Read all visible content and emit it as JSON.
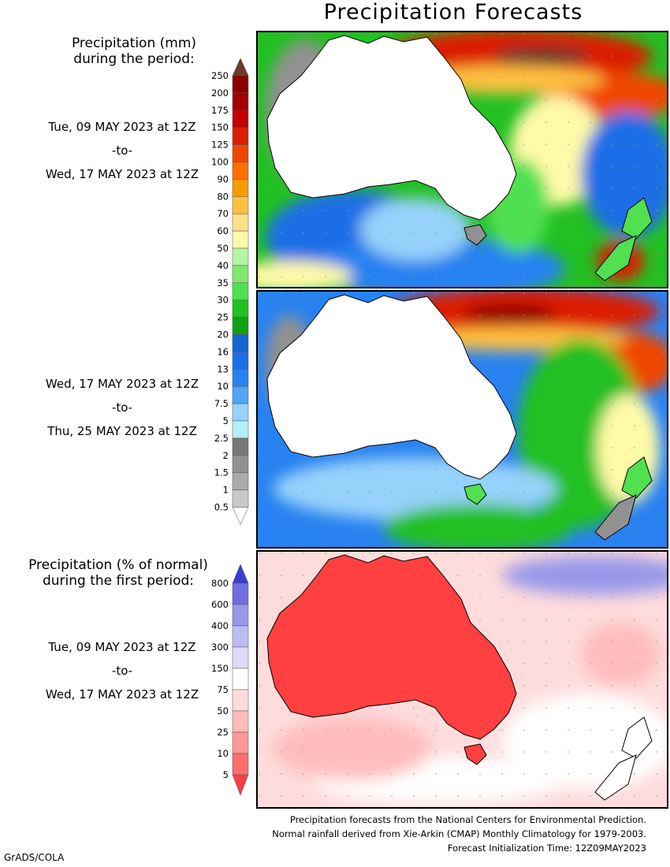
{
  "title": "Precipitation Forecasts",
  "section1": {
    "heading": [
      "Precipitation (mm)",
      "during the period:"
    ],
    "period1": {
      "start": "Tue, 09 MAY 2023 at 12Z",
      "sep": "-to-",
      "end": "Wed, 17 MAY 2023 at 12Z"
    },
    "period2": {
      "start": "Wed, 17 MAY 2023 at 12Z",
      "sep": "-to-",
      "end": "Thu, 25 MAY 2023 at 12Z"
    }
  },
  "section2": {
    "heading": [
      "Precipitation (% of normal)",
      "during the first period:"
    ],
    "period": {
      "start": "Tue, 09 MAY 2023 at 12Z",
      "sep": "-to-",
      "end": "Wed, 17 MAY 2023 at 12Z"
    }
  },
  "mm_scale": {
    "labels": [
      "250",
      "200",
      "175",
      "150",
      "125",
      "100",
      "90",
      "80",
      "70",
      "60",
      "50",
      "40",
      "35",
      "30",
      "25",
      "20",
      "16",
      "13",
      "10",
      "7.5",
      "5",
      "2.5",
      "2",
      "1.5",
      "1",
      "0.5"
    ],
    "colors": [
      "#6a3a2e",
      "#8b0000",
      "#a50000",
      "#c40000",
      "#dc1e00",
      "#f04600",
      "#ff6e00",
      "#f59c00",
      "#ffc040",
      "#ffdf86",
      "#fffaa8",
      "#b4f5a0",
      "#80e870",
      "#50e050",
      "#22c022",
      "#12a012",
      "#1464d2",
      "#1e6ee6",
      "#2882f0",
      "#50a5f5",
      "#96d2fa",
      "#b4f0fa",
      "#777777",
      "#919191",
      "#aaaaaa",
      "#c8c8c8"
    ]
  },
  "pct_scale": {
    "labels": [
      "800",
      "600",
      "400",
      "300",
      "150",
      "75",
      "50",
      "25",
      "10",
      "5"
    ],
    "colors": [
      "#3c3cd0",
      "#6e6ee0",
      "#9898ea",
      "#bcbcf2",
      "#dcdcfa",
      "#ffffff",
      "#ffdcdc",
      "#ffbcbc",
      "#ff9898",
      "#ff6e6e",
      "#ff4040"
    ]
  },
  "footer": {
    "line1": "Precipitation forecasts from the National Centers for Environmental Prediction.",
    "line2": "Normal rainfall derived from Xie-Arkin (CMAP) Monthly Climatology for 1979-2003.",
    "line3": "Forecast Initialization Time: 12Z09MAY2023"
  },
  "credit": "GrADS/COLA",
  "maps": {
    "map1_ocean": "#22c022",
    "map2_ocean": "#2882f0",
    "map3_ocean": "#ffdcdc",
    "land": "#ffffff"
  }
}
